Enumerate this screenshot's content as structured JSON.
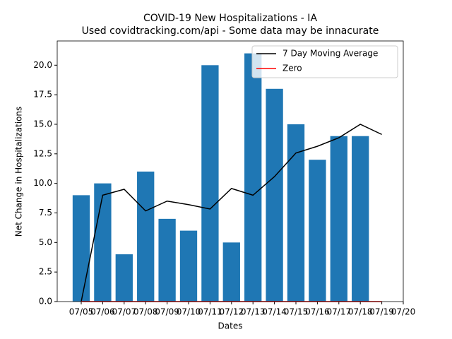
{
  "chart_data": {
    "type": "bar",
    "title": "COVID-19 New Hospitalizations - IA",
    "subtitle": "Used covidtracking.com/api - Some data may be innacurate",
    "x_label": "Dates",
    "y_label": "Net Change in Hospitalizations",
    "categories": [
      "07/05",
      "07/06",
      "07/07",
      "07/08",
      "07/09",
      "07/10",
      "07/11",
      "07/12",
      "07/13",
      "07/14",
      "07/15",
      "07/16",
      "07/17",
      "07/18",
      "07/19",
      "07/20"
    ],
    "values": [
      9,
      10,
      4,
      11,
      7,
      6,
      20,
      5,
      21,
      18,
      15,
      12,
      14,
      14,
      null,
      null
    ],
    "color": "#1f77b4",
    "series": [
      {
        "name": "7 Day Moving Average",
        "color": "#000000",
        "values": [
          0,
          9,
          9.5,
          7.67,
          8.5,
          8.2,
          7.83,
          9.57,
          9,
          10.57,
          12.57,
          13.14,
          13.86,
          15,
          14.14,
          null
        ]
      },
      {
        "name": "Zero",
        "color": "#ff0000",
        "values": [
          0,
          0,
          0,
          0,
          0,
          0,
          0,
          0,
          0,
          0,
          0,
          0,
          0,
          0,
          0,
          null
        ]
      }
    ],
    "ylim": [
      0,
      22.05
    ],
    "yticks": [
      {
        "value": 0,
        "label": "0.0"
      },
      {
        "value": 2.5,
        "label": "2.5"
      },
      {
        "value": 5,
        "label": "5.0"
      },
      {
        "value": 7.5,
        "label": "7.5"
      },
      {
        "value": 10,
        "label": "10.0"
      },
      {
        "value": 12.5,
        "label": "12.5"
      },
      {
        "value": 15,
        "label": "15.0"
      },
      {
        "value": 17.5,
        "label": "17.5"
      },
      {
        "value": 20,
        "label": "20.0"
      }
    ],
    "legend": "upper right"
  }
}
